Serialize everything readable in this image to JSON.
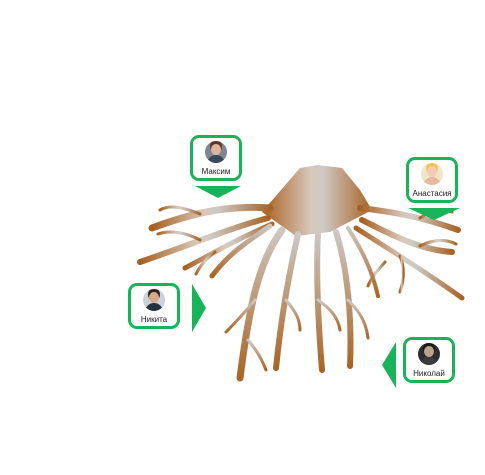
{
  "people": [
    {
      "name": "Максим",
      "photo_bg": "#7d8794",
      "hair": "#5a3a26",
      "skin": "#e0b49a",
      "shirt": "#3a4a5a"
    },
    {
      "name": "Анастасия",
      "photo_bg": "#f2e6c8",
      "hair": "#f3c25a",
      "skin": "#f2cdb4",
      "shirt": "#e9b8a0"
    },
    {
      "name": "Никита",
      "photo_bg": "#c9d2db",
      "hair": "#2c241d",
      "skin": "#d8a888",
      "shirt": "#24313f"
    },
    {
      "name": "Николай",
      "photo_bg": "#2e2e30",
      "hair": "#1a1a1a",
      "skin": "#b8a48a",
      "shirt": "#3c3c3c"
    }
  ],
  "colors": {
    "accent": "#19b45a",
    "root_brown": "#b06a2a",
    "root_grey": "#cfc9c4"
  }
}
